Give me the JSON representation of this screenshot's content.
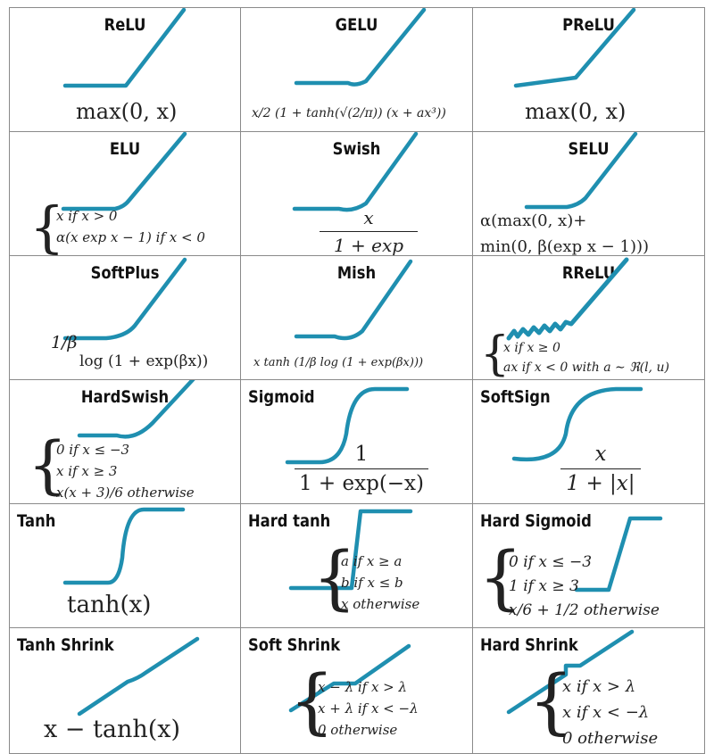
{
  "cells": [
    {
      "title": "ReLU",
      "formula": "max(0, x)"
    },
    {
      "title": "GELU",
      "formula": "x/2 (1 + tanh(√(2/π)) (x + ax³))"
    },
    {
      "title": "PReLU",
      "formula": "max(0, x)"
    },
    {
      "title": "ELU",
      "lines": [
        "x if x > 0",
        "α(x exp x − 1) if x < 0"
      ]
    },
    {
      "title": "Swish",
      "num": "x",
      "den": "1 + exp −x"
    },
    {
      "title": "SELU",
      "lines": [
        "α(max(0, x)+",
        "min(0, β(exp x − 1)))"
      ]
    },
    {
      "title": "SoftPlus",
      "pre": "1/β",
      "formula": "log (1 + exp(βx))"
    },
    {
      "title": "Mish",
      "formula": "x tanh (1/β log (1 + exp(βx)))"
    },
    {
      "title": "RReLU",
      "lines": [
        "x if x ≥ 0",
        "ax if x < 0 with a ∼ ℜ(l, u)"
      ]
    },
    {
      "title": "HardSwish",
      "lines": [
        "0 if x ≤ −3",
        "x if x ≥ 3",
        "x(x + 3)/6 otherwise"
      ]
    },
    {
      "title": "Sigmoid",
      "num": "1",
      "den": "1 + exp(−x)"
    },
    {
      "title": "SoftSign",
      "num": "x",
      "den": "1 + |x|"
    },
    {
      "title": "Tanh",
      "formula": "tanh(x)"
    },
    {
      "title": "Hard tanh",
      "lines": [
        "a if x ≥ a",
        "b if x ≤ b",
        "x otherwise"
      ]
    },
    {
      "title": "Hard Sigmoid",
      "lines": [
        "0 if x ≤ −3",
        "1 if x ≥ 3",
        "x/6 + 1/2 otherwise"
      ]
    },
    {
      "title": "Tanh Shrink",
      "formula": "x − tanh(x)"
    },
    {
      "title": "Soft Shrink",
      "lines": [
        "x − λ if x > λ",
        "x + λ if x < −λ",
        "0 otherwise"
      ]
    },
    {
      "title": "Hard Shrink",
      "lines": [
        "x if x > λ",
        "x if x < −λ",
        "0 otherwise"
      ]
    }
  ],
  "curve_color": "#1f8fb0"
}
